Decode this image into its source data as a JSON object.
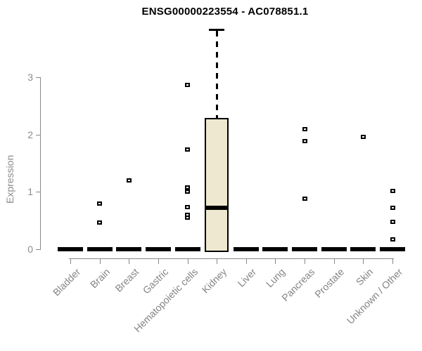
{
  "title": "ENSG00000223554 - AC078851.1",
  "chart_data": {
    "type": "boxplot",
    "title": "ENSG00000223554 - AC078851.1",
    "ylabel": "Expression",
    "xlabel": "",
    "ylim": [
      0,
      3.95
    ],
    "yticks": [
      0,
      1,
      2,
      3
    ],
    "grid": false,
    "legend": "none",
    "categories": [
      "Bladder",
      "Brain",
      "Breast",
      "Gastric",
      "Hematopoietic cells",
      "Kidney",
      "Liver",
      "Lung",
      "Pancreas",
      "Prostate",
      "Skin",
      "Unknown / Other"
    ],
    "boxes": [
      {
        "category": "Bladder",
        "q1": 0,
        "median": 0,
        "q3": 0,
        "whisker_low": 0,
        "whisker_high": 0,
        "outliers": []
      },
      {
        "category": "Brain",
        "q1": 0,
        "median": 0,
        "q3": 0,
        "whisker_low": 0,
        "whisker_high": 0,
        "outliers": [
          0.8,
          0.47
        ]
      },
      {
        "category": "Breast",
        "q1": 0,
        "median": 0,
        "q3": 0,
        "whisker_low": 0,
        "whisker_high": 0,
        "outliers": [
          1.2
        ]
      },
      {
        "category": "Gastric",
        "q1": 0,
        "median": 0,
        "q3": 0,
        "whisker_low": 0,
        "whisker_high": 0,
        "outliers": []
      },
      {
        "category": "Hematopoietic cells",
        "q1": 0,
        "median": 0,
        "q3": 0,
        "whisker_low": 0,
        "whisker_high": 0,
        "outliers": [
          2.86,
          1.74,
          1.08,
          1.0,
          0.73,
          0.6,
          0.55
        ]
      },
      {
        "category": "Kidney",
        "q1": 0,
        "median": 0.72,
        "q3": 2.26,
        "whisker_low": 0,
        "whisker_high": 3.83,
        "outliers": []
      },
      {
        "category": "Liver",
        "q1": 0,
        "median": 0,
        "q3": 0,
        "whisker_low": 0,
        "whisker_high": 0,
        "outliers": []
      },
      {
        "category": "Lung",
        "q1": 0,
        "median": 0,
        "q3": 0,
        "whisker_low": 0,
        "whisker_high": 0,
        "outliers": []
      },
      {
        "category": "Pancreas",
        "q1": 0,
        "median": 0,
        "q3": 0,
        "whisker_low": 0,
        "whisker_high": 0,
        "outliers": [
          2.09,
          1.88,
          0.88
        ]
      },
      {
        "category": "Prostate",
        "q1": 0,
        "median": 0,
        "q3": 0,
        "whisker_low": 0,
        "whisker_high": 0,
        "outliers": []
      },
      {
        "category": "Skin",
        "q1": 0,
        "median": 0,
        "q3": 0,
        "whisker_low": 0,
        "whisker_high": 0,
        "outliers": [
          1.96
        ]
      },
      {
        "category": "Unknown / Other",
        "q1": 0,
        "median": 0,
        "q3": 0,
        "whisker_low": 0,
        "whisker_high": 0,
        "outliers": [
          1.02,
          0.72,
          0.48,
          0.17
        ]
      }
    ],
    "colors": {
      "box_fill": "#EDE8CF",
      "box_border": "#000000",
      "median": "#000000",
      "outlier": "#000000",
      "axis": "#888888",
      "tick_text": "#8c8c8c",
      "title_text": "#000000"
    }
  }
}
